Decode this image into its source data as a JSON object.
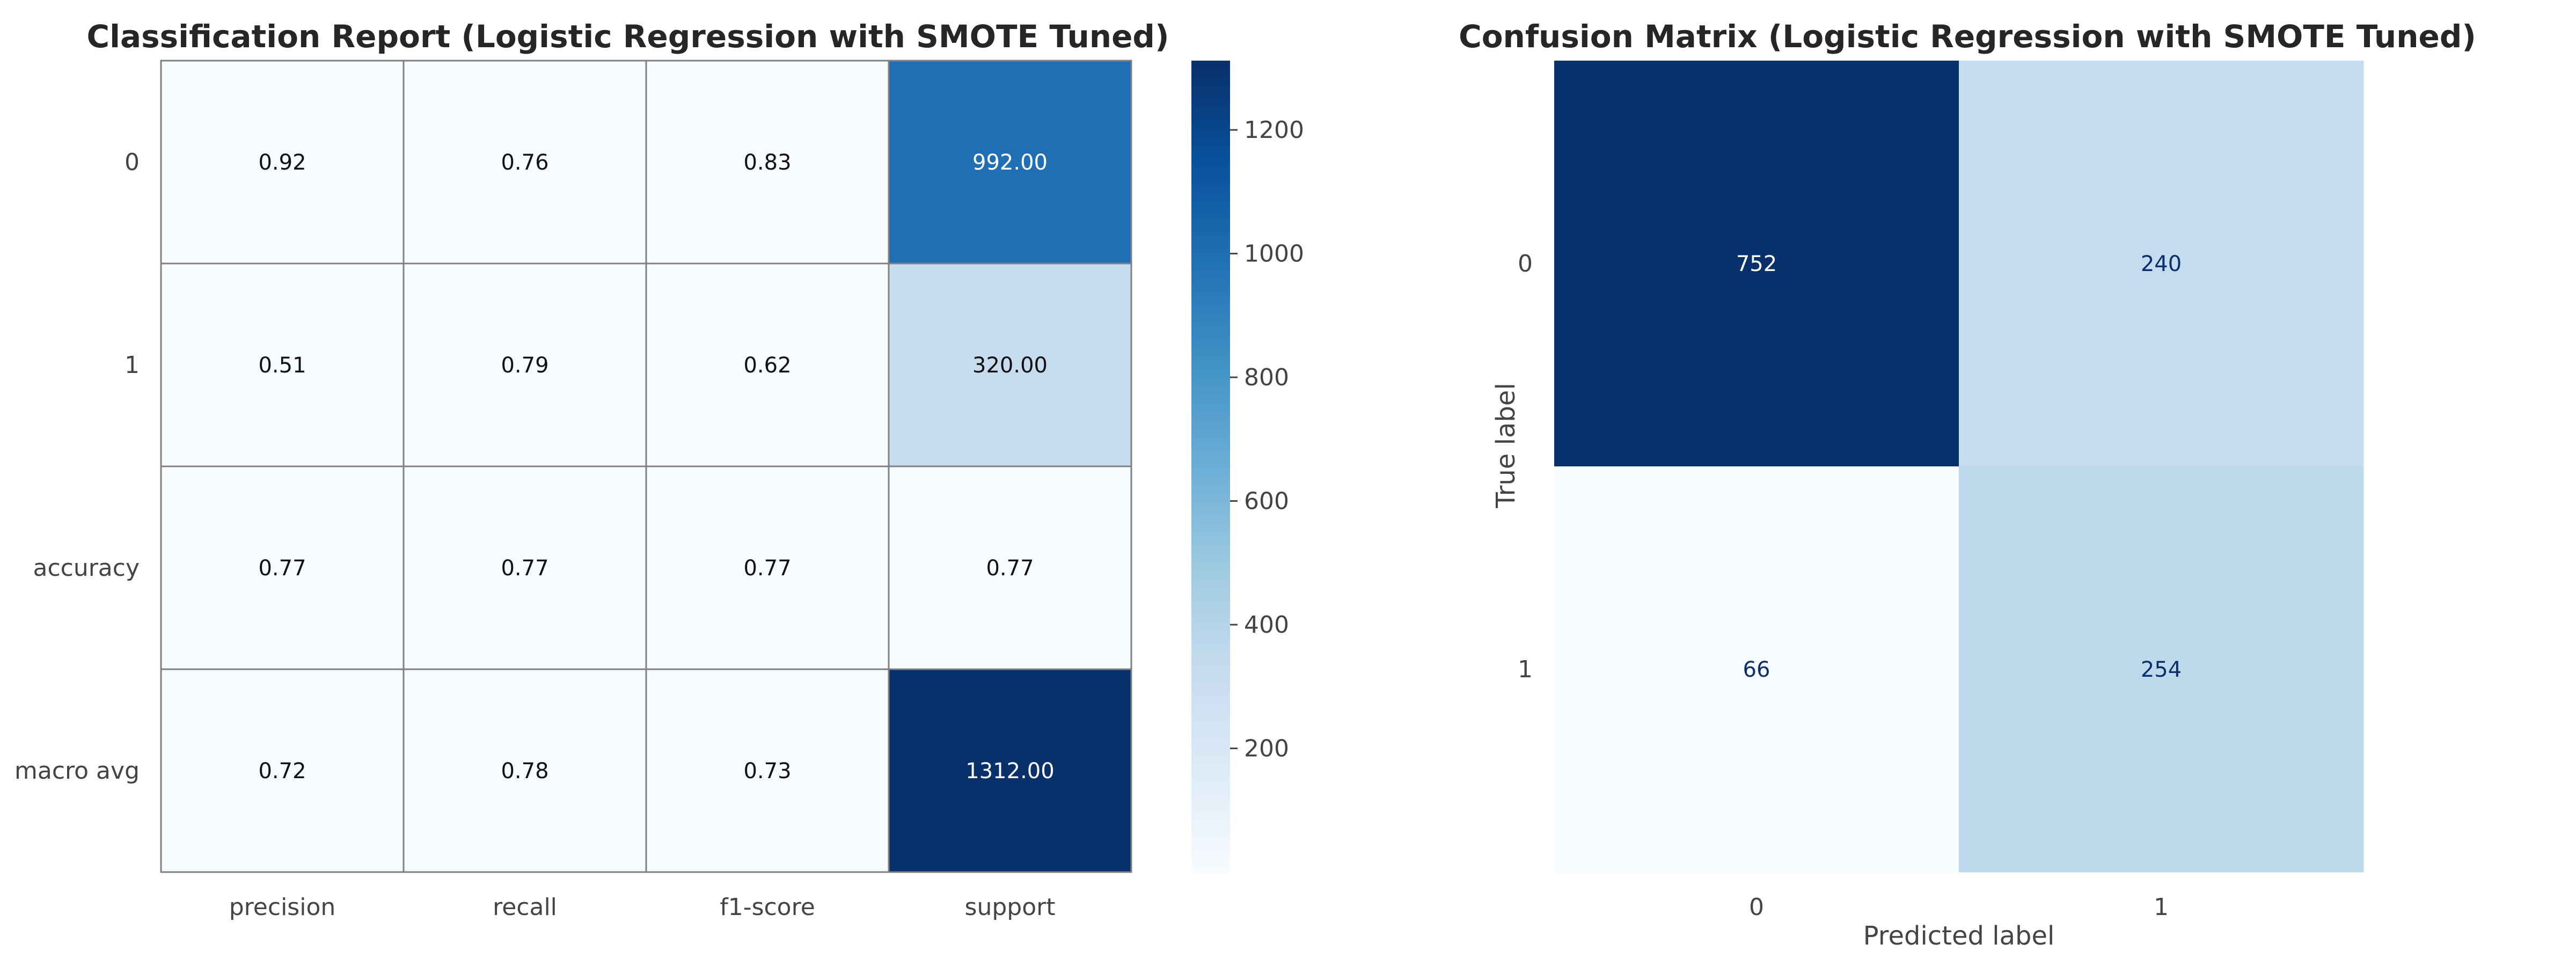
{
  "chart_data": [
    {
      "type": "heatmap",
      "title": "Classification Report (Logistic Regression with SMOTE Tuned)",
      "rows": [
        "0",
        "1",
        "accuracy",
        "macro avg"
      ],
      "columns": [
        "precision",
        "recall",
        "f1-score",
        "support"
      ],
      "values": [
        [
          0.92,
          0.76,
          0.83,
          992.0
        ],
        [
          0.51,
          0.79,
          0.62,
          320.0
        ],
        [
          0.77,
          0.77,
          0.77,
          0.77
        ],
        [
          0.72,
          0.78,
          0.73,
          1312.0
        ]
      ],
      "labels": [
        [
          "0.92",
          "0.76",
          "0.83",
          "992.00"
        ],
        [
          "0.51",
          "0.79",
          "0.62",
          "320.00"
        ],
        [
          "0.77",
          "0.77",
          "0.77",
          "0.77"
        ],
        [
          "0.72",
          "0.78",
          "0.73",
          "1312.00"
        ]
      ],
      "colormap": "Blues",
      "vmin": 0,
      "vmax": 1312,
      "colorbar_ticks": [
        200,
        400,
        600,
        800,
        1000,
        1200
      ],
      "colorbar_tick_labels": [
        "200",
        "400",
        "600",
        "800",
        "1000",
        "1200"
      ],
      "grid": true
    },
    {
      "type": "heatmap",
      "title": "Confusion Matrix (Logistic Regression with SMOTE Tuned)",
      "xlabel": "Predicted label",
      "ylabel": "True label",
      "rows": [
        "0",
        "1"
      ],
      "columns": [
        "0",
        "1"
      ],
      "values": [
        [
          752,
          240
        ],
        [
          66,
          254
        ]
      ],
      "labels": [
        [
          "752",
          "240"
        ],
        [
          "66",
          "254"
        ]
      ],
      "colormap": "Blues",
      "vmin": 66,
      "vmax": 752,
      "grid": false
    }
  ]
}
